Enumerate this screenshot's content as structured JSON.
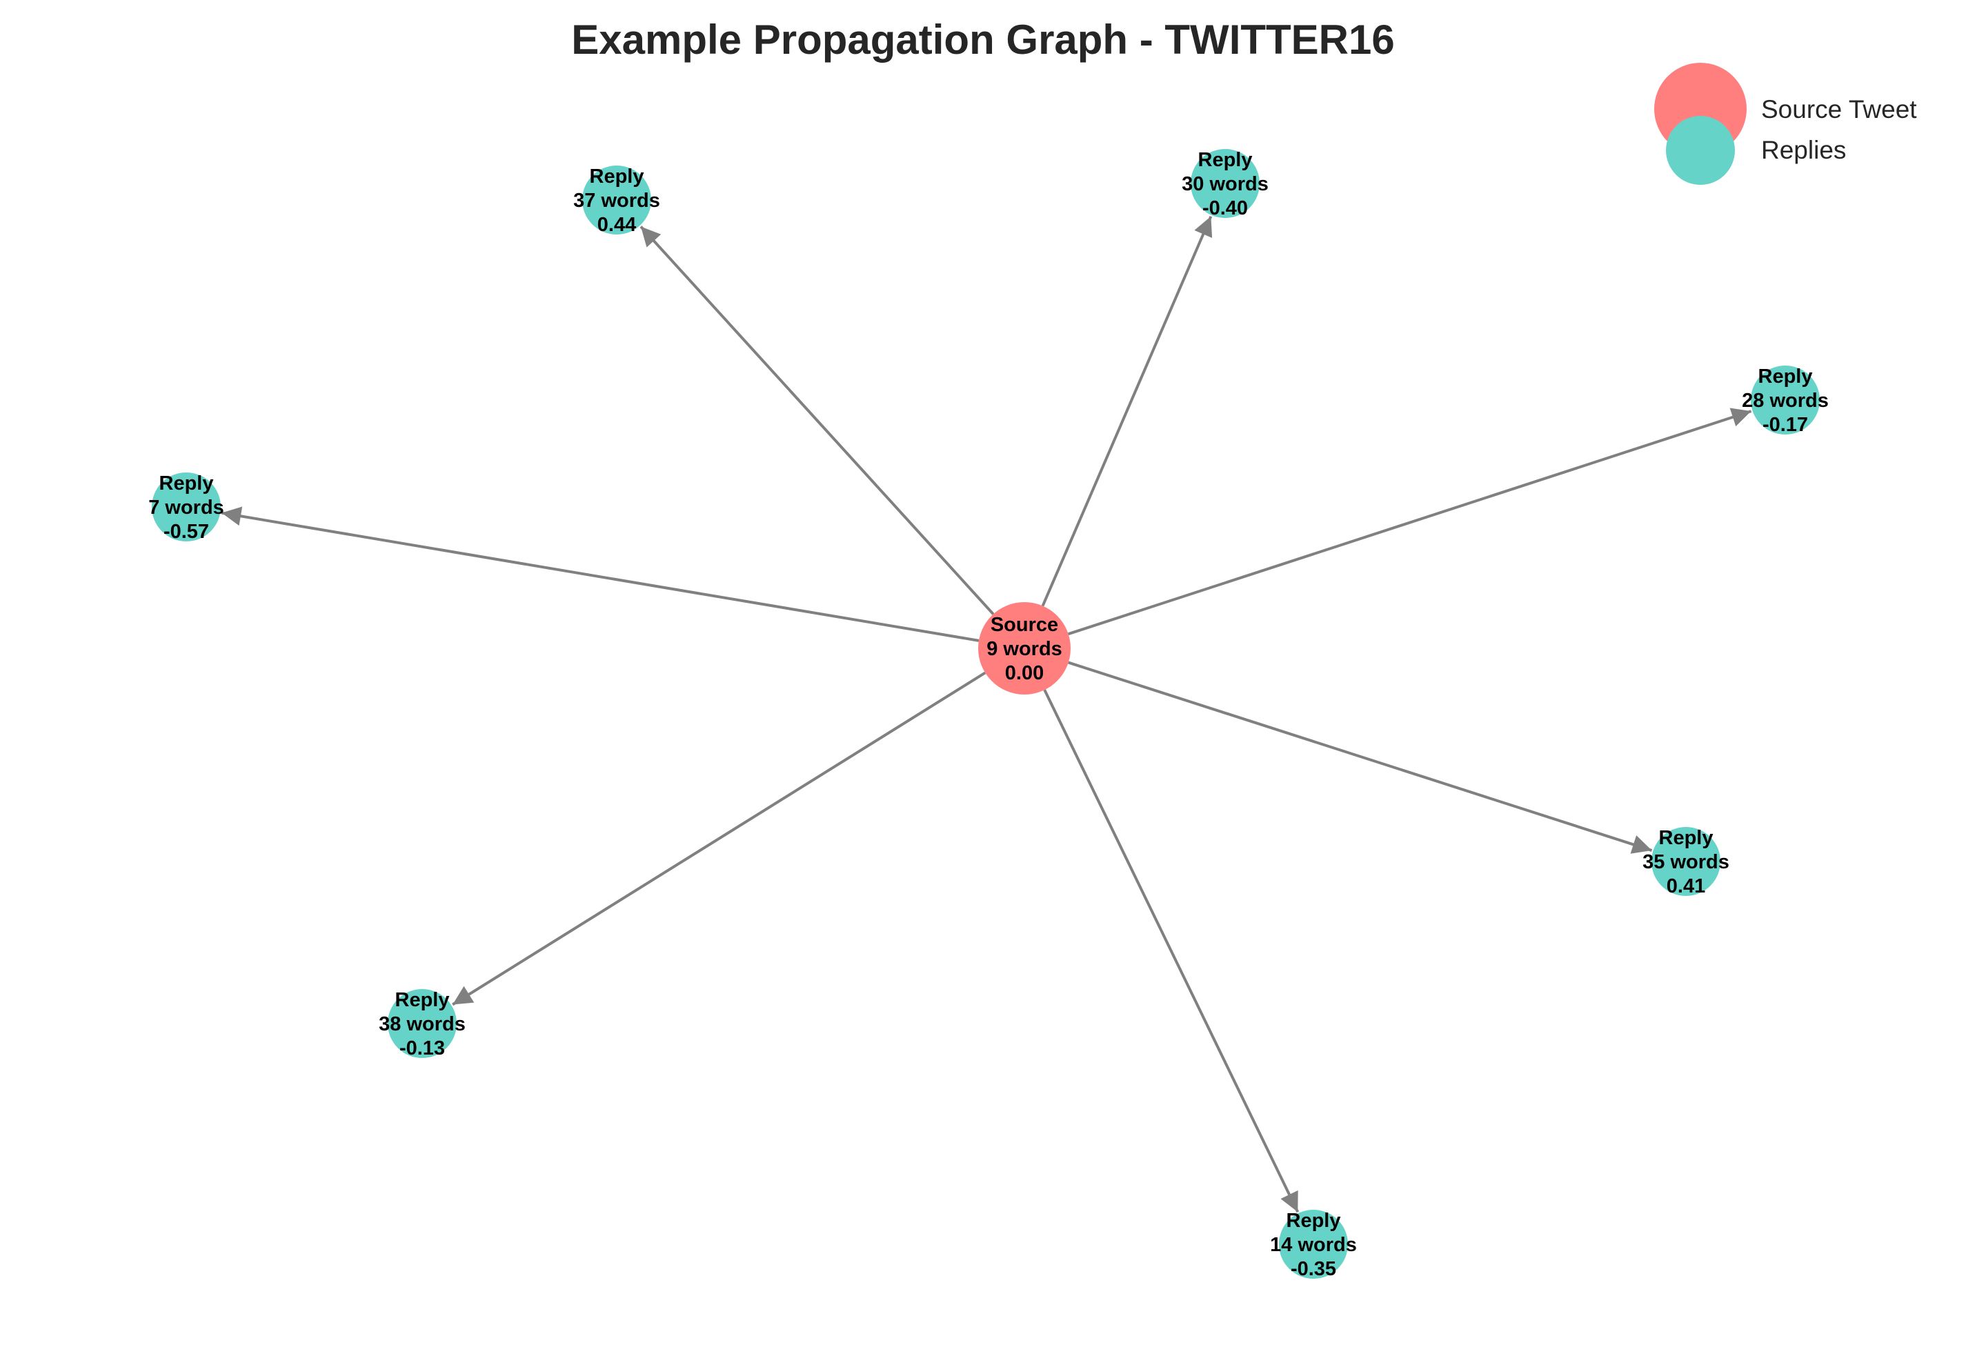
{
  "title": "Example Propagation Graph - TWITTER16",
  "colors": {
    "source": "#FF7F7F",
    "reply": "#66D3C9",
    "edge": "#808080",
    "text": "#000000",
    "title": "#262626"
  },
  "legend": {
    "items": [
      {
        "label": "Source Tweet",
        "kind": "source"
      },
      {
        "label": "Replies",
        "kind": "reply"
      }
    ]
  },
  "graph": {
    "source": "n0",
    "nodes": [
      {
        "id": "n0",
        "kind": "source",
        "lines": [
          "Source",
          "9 words",
          "0.00"
        ]
      },
      {
        "id": "n1",
        "kind": "reply",
        "lines": [
          "Reply",
          "37 words",
          "0.44"
        ]
      },
      {
        "id": "n2",
        "kind": "reply",
        "lines": [
          "Reply",
          "30 words",
          "-0.40"
        ]
      },
      {
        "id": "n3",
        "kind": "reply",
        "lines": [
          "Reply",
          "28 words",
          "-0.17"
        ]
      },
      {
        "id": "n4",
        "kind": "reply",
        "lines": [
          "Reply",
          "7 words",
          "-0.57"
        ]
      },
      {
        "id": "n5",
        "kind": "reply",
        "lines": [
          "Reply",
          "35 words",
          "0.41"
        ]
      },
      {
        "id": "n6",
        "kind": "reply",
        "lines": [
          "Reply",
          "38 words",
          "-0.13"
        ]
      },
      {
        "id": "n7",
        "kind": "reply",
        "lines": [
          "Reply",
          "14 words",
          "-0.35"
        ]
      }
    ],
    "edges": [
      {
        "from": "n0",
        "to": "n1"
      },
      {
        "from": "n0",
        "to": "n2"
      },
      {
        "from": "n0",
        "to": "n3"
      },
      {
        "from": "n0",
        "to": "n4"
      },
      {
        "from": "n0",
        "to": "n5"
      },
      {
        "from": "n0",
        "to": "n6"
      },
      {
        "from": "n0",
        "to": "n7"
      }
    ]
  }
}
